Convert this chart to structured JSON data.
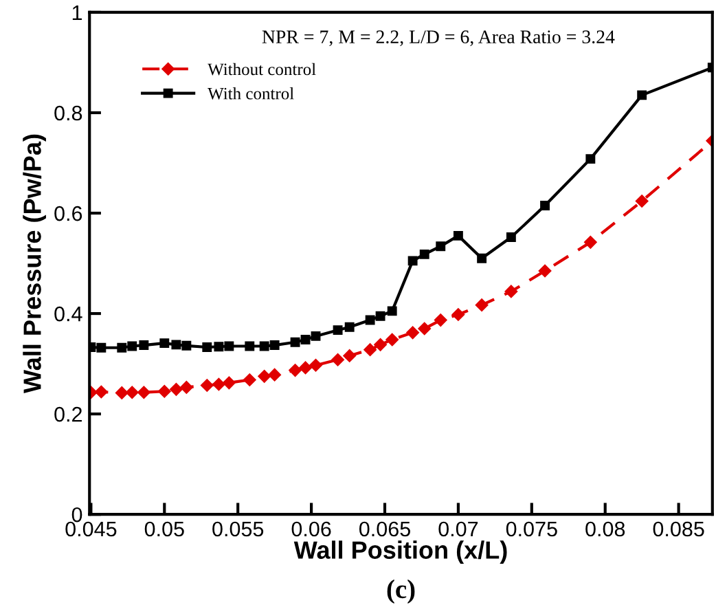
{
  "chart_data": {
    "type": "line",
    "xlabel": "Wall Position (x/L)",
    "ylabel": "Wall Pressure (Pw/Pa)",
    "annotations": [
      "NPR = 7, M = 2.2, L/D = 6, Area Ratio = 3.24",
      "(c)"
    ],
    "x": [
      0.045,
      0.0457,
      0.0471,
      0.0478,
      0.0486,
      0.05,
      0.0508,
      0.0515,
      0.0529,
      0.0537,
      0.0544,
      0.0558,
      0.0568,
      0.0575,
      0.0589,
      0.0596,
      0.0603,
      0.0618,
      0.0626,
      0.064,
      0.0647,
      0.0655,
      0.0669,
      0.0677,
      0.0688,
      0.07,
      0.0716,
      0.0736,
      0.0759,
      0.079,
      0.0825,
      0.0873
    ],
    "series": [
      {
        "name": "Without control",
        "color": "#e00000",
        "marker": "diamond",
        "line_style": "dashed",
        "values": [
          0.243,
          0.244,
          0.242,
          0.243,
          0.243,
          0.245,
          0.249,
          0.253,
          0.257,
          0.259,
          0.262,
          0.268,
          0.275,
          0.278,
          0.287,
          0.292,
          0.297,
          0.308,
          0.316,
          0.328,
          0.338,
          0.348,
          0.362,
          0.37,
          0.387,
          0.398,
          0.417,
          0.444,
          0.485,
          0.542,
          0.624,
          0.744
        ]
      },
      {
        "name": "With control",
        "color": "#000000",
        "marker": "square",
        "line_style": "solid",
        "values": [
          0.333,
          0.332,
          0.332,
          0.335,
          0.337,
          0.341,
          0.338,
          0.336,
          0.333,
          0.334,
          0.335,
          0.335,
          0.335,
          0.337,
          0.343,
          0.348,
          0.355,
          0.367,
          0.373,
          0.387,
          0.395,
          0.405,
          0.505,
          0.518,
          0.534,
          0.555,
          0.51,
          0.552,
          0.615,
          0.708,
          0.835,
          0.89
        ]
      }
    ],
    "xlim": [
      0.0449,
      0.0873
    ],
    "ylim": [
      0,
      1
    ],
    "xticks": [
      0.045,
      0.05,
      0.055,
      0.06,
      0.065,
      0.07,
      0.075,
      0.08,
      0.085
    ],
    "yticks": [
      0,
      0.2,
      0.4,
      0.6,
      0.8,
      1
    ],
    "grid": false,
    "legend": "top left"
  }
}
